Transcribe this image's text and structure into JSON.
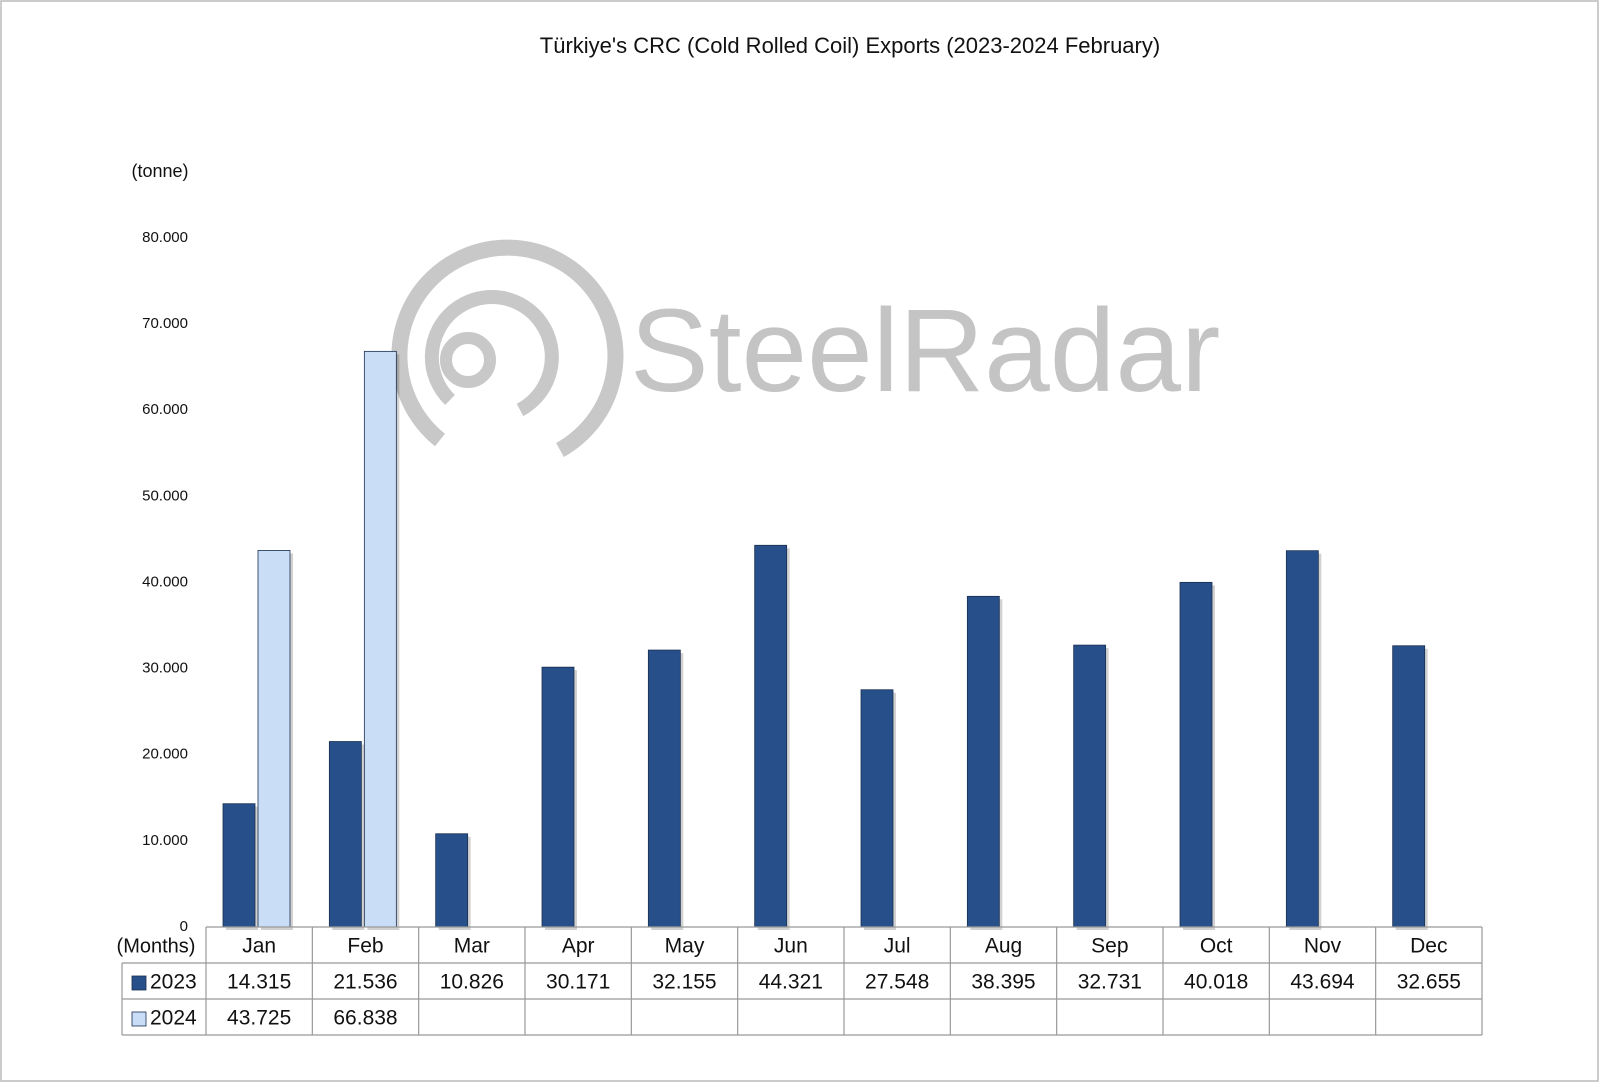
{
  "chart_data": {
    "type": "bar",
    "title": "Türkiye's CRC (Cold Rolled Coil) Exports (2023-2024 February)",
    "y_label": "(tonne)",
    "x_label": "(Months)",
    "watermark": "SteelRadar",
    "categories": [
      "Jan",
      "Feb",
      "Mar",
      "Apr",
      "May",
      "Jun",
      "Jul",
      "Aug",
      "Sep",
      "Oct",
      "Nov",
      "Dec"
    ],
    "series": [
      {
        "name": "2023",
        "color": "#27508a",
        "values": [
          14315,
          21536,
          10826,
          30171,
          32155,
          44321,
          27548,
          38395,
          32731,
          40018,
          43694,
          32655
        ],
        "value_labels": [
          "14.315",
          "21.536",
          "10.826",
          "30.171",
          "32.155",
          "44.321",
          "27.548",
          "38.395",
          "32.731",
          "40.018",
          "43.694",
          "32.655"
        ]
      },
      {
        "name": "2024",
        "color": "#c9ddf6",
        "values": [
          43725,
          66838,
          null,
          null,
          null,
          null,
          null,
          null,
          null,
          null,
          null,
          null
        ],
        "value_labels": [
          "43.725",
          "66.838",
          null,
          null,
          null,
          null,
          null,
          null,
          null,
          null,
          null,
          null
        ]
      }
    ],
    "ylim": [
      0,
      80000
    ],
    "yticks": [
      0,
      {
        "value": 10000,
        "label": "10.000"
      },
      {
        "value": 20000,
        "label": "20.000"
      },
      {
        "value": 30000,
        "label": "30.000"
      },
      {
        "value": 40000,
        "label": "40.000"
      },
      {
        "value": 50000,
        "label": "50.000"
      },
      {
        "value": 60000,
        "label": "60.000"
      },
      {
        "value": 70000,
        "label": "70.000"
      },
      {
        "value": 80000,
        "label": "80.000"
      }
    ],
    "grid": false,
    "data_table": true
  }
}
